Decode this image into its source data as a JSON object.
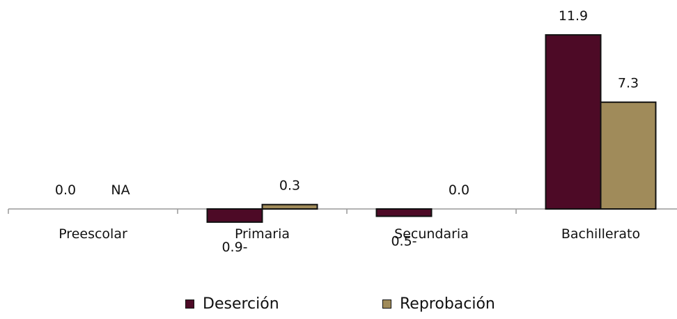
{
  "chart_data": {
    "type": "bar",
    "categories": [
      "Preescolar",
      "Primaria",
      "Secundaria",
      "Bachillerato"
    ],
    "series": [
      {
        "name": "Deserción",
        "color": "#4d0a26",
        "values": [
          0.0,
          -0.9,
          -0.5,
          11.9
        ],
        "labels": [
          "0.0",
          "0.9-",
          "0.5-",
          "11.9"
        ]
      },
      {
        "name": "Reprobación",
        "color": "#a08b5a",
        "values": [
          null,
          0.3,
          0.0,
          7.3
        ],
        "labels": [
          "NA",
          "0.3",
          "0.0",
          "7.3"
        ]
      }
    ],
    "ylim": [
      -1.0,
      12.5
    ],
    "grid": false,
    "legend_position": "bottom"
  }
}
